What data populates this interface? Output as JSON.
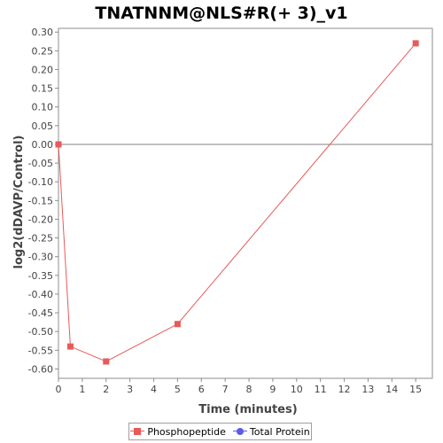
{
  "chart_data": {
    "type": "line",
    "title": "TNATNNM@NLS#R(+ 3)_v1",
    "xlabel": "Time (minutes)",
    "ylabel": "log2(dDAVP/Control)",
    "xlim": [
      0,
      15.7
    ],
    "ylim": [
      -0.625,
      0.31
    ],
    "x_ticks": [
      0,
      1,
      2,
      3,
      4,
      5,
      6,
      7,
      8,
      9,
      10,
      11,
      12,
      13,
      14,
      15
    ],
    "y_ticks": [
      0.3,
      0.25,
      0.2,
      0.15,
      0.1,
      0.05,
      0.0,
      -0.05,
      -0.1,
      -0.15,
      -0.2,
      -0.25,
      -0.3,
      -0.35,
      -0.4,
      -0.45,
      -0.5,
      -0.55,
      -0.6
    ],
    "y_tick_labels": [
      "0.30",
      "0.25",
      "0.20",
      "0.15",
      "0.10",
      "0.05",
      "0.00",
      "-0.05",
      "-0.10",
      "-0.15",
      "-0.20",
      "-0.25",
      "-0.30",
      "-0.35",
      "-0.40",
      "-0.45",
      "-0.50",
      "-0.55",
      "-0.60"
    ],
    "zero_line": 0,
    "grid": false,
    "legend_position": "bottom",
    "series": [
      {
        "name": "Phosphopeptide",
        "color": "#e85a5a",
        "marker": "square",
        "x": [
          0,
          0.5,
          2,
          5,
          15
        ],
        "y": [
          0.0,
          -0.54,
          -0.58,
          -0.48,
          0.27
        ]
      },
      {
        "name": "Total Protein",
        "color": "#5a5af0",
        "marker": "circle",
        "x": [],
        "y": []
      }
    ]
  }
}
